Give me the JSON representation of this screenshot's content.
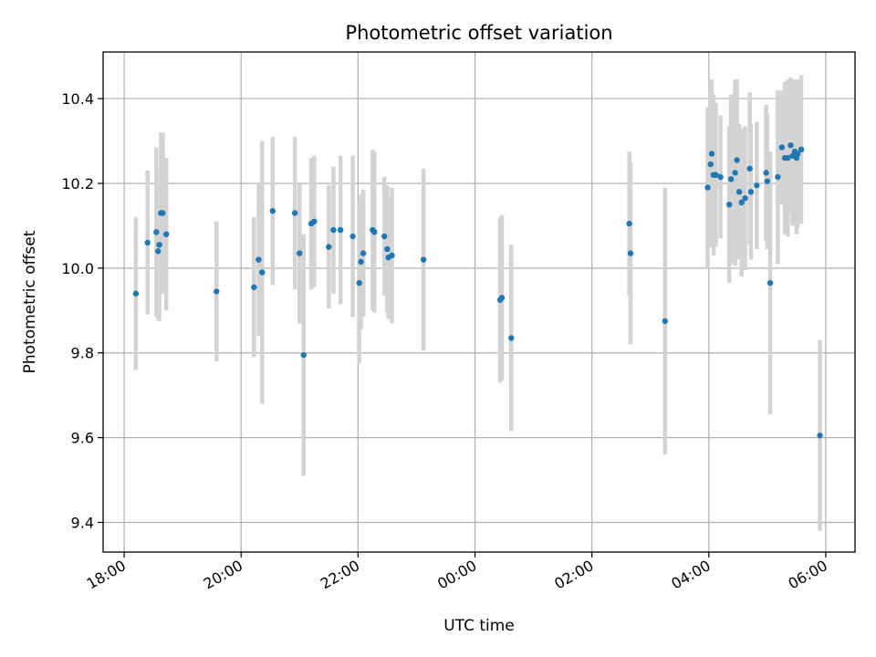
{
  "chart_data": {
    "type": "scatter",
    "title": "Photometric offset variation",
    "xlabel": "UTC time",
    "ylabel": "Photometric offset",
    "x_tick_labels": [
      "18:00",
      "20:00",
      "22:00",
      "00:00",
      "02:00",
      "04:00",
      "06:00"
    ],
    "x_tick_hours": [
      18,
      20,
      22,
      24,
      26,
      28,
      30
    ],
    "x_range_hours": [
      17.64,
      30.5
    ],
    "y_ticks": [
      9.4,
      9.6,
      9.8,
      10.0,
      10.2,
      10.4
    ],
    "y_tick_labels": [
      "9.4",
      "9.6",
      "9.8",
      "10.0",
      "10.2",
      "10.4"
    ],
    "y_range": [
      9.33,
      10.51
    ],
    "grid": true,
    "colors": {
      "point": "#1f77b4",
      "errorbar": "#d3d3d3"
    },
    "series": [
      {
        "x_hours": [
          18.2,
          18.4,
          18.55,
          18.58,
          18.6,
          18.63,
          18.66,
          18.72,
          19.58,
          20.22,
          20.3,
          20.36,
          20.54,
          20.92,
          21.0,
          21.07,
          21.2,
          21.25,
          21.5,
          21.58,
          21.7,
          21.91,
          22.02,
          22.05,
          22.09,
          22.25,
          22.28,
          22.45,
          22.5,
          22.52,
          22.58,
          23.12,
          24.43,
          24.46,
          24.62,
          26.64,
          26.66,
          27.25,
          27.98,
          28.03,
          28.05,
          28.08,
          28.12,
          28.2,
          28.35,
          28.38,
          28.45,
          28.48,
          28.52,
          28.56,
          28.62,
          28.7,
          28.72,
          28.82,
          28.98,
          29.0,
          29.05,
          29.18,
          29.25,
          29.3,
          29.35,
          29.4,
          29.43,
          29.47,
          29.5,
          29.52,
          29.58,
          29.9
        ],
        "y": [
          9.94,
          10.06,
          10.085,
          10.04,
          10.055,
          10.13,
          10.13,
          10.08,
          9.945,
          9.955,
          10.02,
          9.99,
          10.135,
          10.13,
          10.035,
          9.795,
          10.105,
          10.11,
          10.05,
          10.09,
          10.09,
          10.075,
          9.965,
          10.015,
          10.035,
          10.09,
          10.085,
          10.075,
          10.045,
          10.025,
          10.03,
          10.02,
          9.925,
          9.93,
          9.835,
          10.105,
          10.035,
          9.875,
          10.19,
          10.245,
          10.27,
          10.22,
          10.22,
          10.215,
          10.15,
          10.21,
          10.225,
          10.255,
          10.18,
          10.155,
          10.165,
          10.235,
          10.18,
          10.195,
          10.225,
          10.205,
          9.965,
          10.215,
          10.285,
          10.26,
          10.26,
          10.29,
          10.265,
          10.275,
          10.26,
          10.27,
          10.28,
          9.605
        ],
        "yerr": [
          0.18,
          0.17,
          0.2,
          0.16,
          0.18,
          0.19,
          0.19,
          0.18,
          0.165,
          0.165,
          0.18,
          0.31,
          0.175,
          0.18,
          0.165,
          0.285,
          0.155,
          0.155,
          0.145,
          0.15,
          0.175,
          0.19,
          0.19,
          0.16,
          0.15,
          0.19,
          0.19,
          0.14,
          0.15,
          0.145,
          0.16,
          0.215,
          0.195,
          0.195,
          0.22,
          0.17,
          0.215,
          0.315,
          0.19,
          0.195,
          0.175,
          0.19,
          0.17,
          0.145,
          0.185,
          0.2,
          0.22,
          0.19,
          0.16,
          0.175,
          0.17,
          0.18,
          0.16,
          0.15,
          0.16,
          0.16,
          0.31,
          0.205,
          0.135,
          0.18,
          0.185,
          0.16,
          0.165,
          0.17,
          0.18,
          0.175,
          0.175,
          0.225
        ]
      }
    ]
  }
}
